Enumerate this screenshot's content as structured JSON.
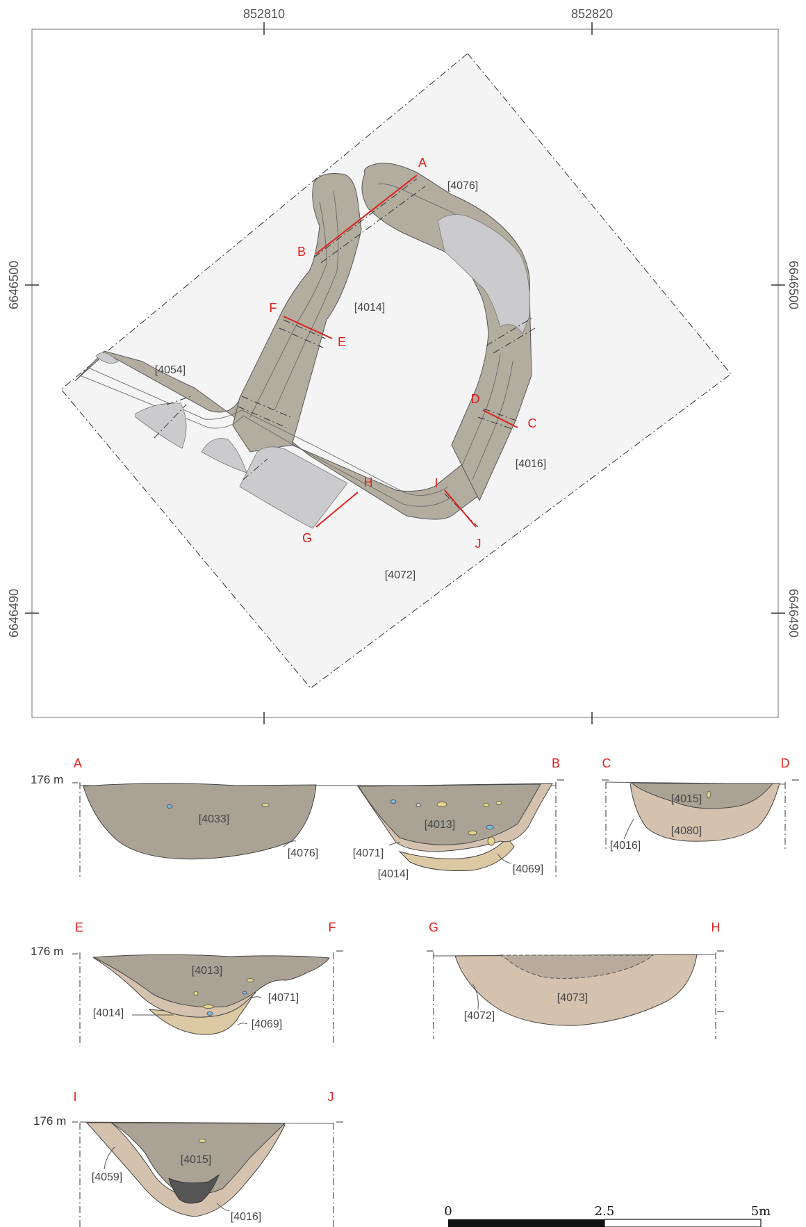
{
  "plan": {
    "x_coords": [
      "852810",
      "852820"
    ],
    "y_coords_left": [
      "6646500",
      "6646490"
    ],
    "y_coords_right": [
      "6646500",
      "6646490"
    ],
    "feature_labels": [
      "[4076]",
      "[4014]",
      "[4054]",
      "[4016]",
      "[4072]"
    ],
    "section_letters": [
      "A",
      "B",
      "C",
      "D",
      "E",
      "F",
      "G",
      "H",
      "I",
      "J"
    ]
  },
  "sections": {
    "elevation_label": "176 m",
    "ab": {
      "start": "A",
      "end": "B",
      "labels": [
        "[4033]",
        "[4076]",
        "[4013]",
        "[4071]",
        "[4014]",
        "[4069]"
      ]
    },
    "cd": {
      "start": "C",
      "end": "D",
      "labels": [
        "[4015]",
        "[4080]",
        "[4016]"
      ]
    },
    "ef": {
      "start": "E",
      "end": "F",
      "labels": [
        "[4013]",
        "[4071]",
        "[4014]",
        "[4069]"
      ]
    },
    "gh": {
      "start": "G",
      "end": "H",
      "labels": [
        "[4073]",
        "[4072]"
      ]
    },
    "ij": {
      "start": "I",
      "end": "J",
      "labels": [
        "[4015]",
        "[4059]",
        "[4016]"
      ]
    }
  },
  "scale_bar": {
    "labels": [
      "0",
      "2.5",
      "5m"
    ]
  },
  "colors": {
    "ditch_fill": "#b3ada0",
    "baulk_fill": "#cbcbcd",
    "section_line": "#e0201c",
    "fill_dark": "#aaa395",
    "fill_light": "#d5c2ae",
    "fill_sand": "#dcc8a2"
  }
}
